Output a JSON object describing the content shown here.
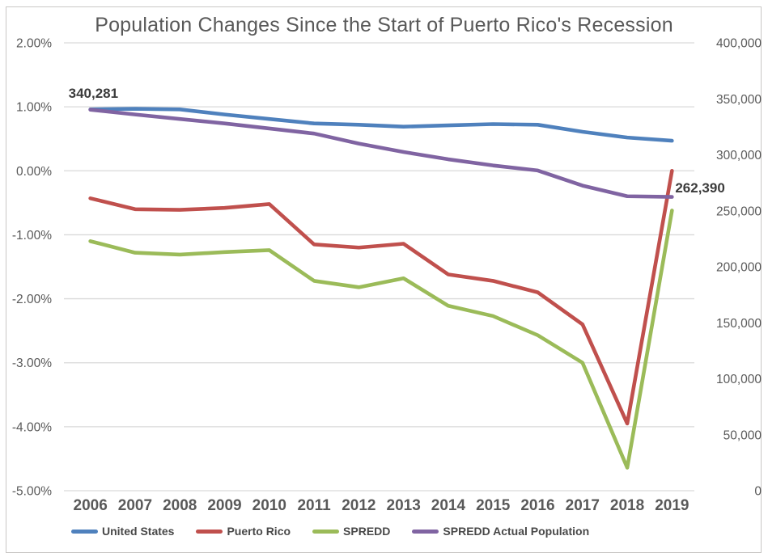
{
  "chart_data": {
    "type": "line",
    "title": "Population Changes Since the Start of Puerto Rico's Recession",
    "categories": [
      "2006",
      "2007",
      "2008",
      "2009",
      "2010",
      "2011",
      "2012",
      "2013",
      "2014",
      "2015",
      "2016",
      "2017",
      "2018",
      "2019"
    ],
    "grid": true,
    "legend_position": "bottom",
    "left_axis": {
      "label_format": "percent",
      "min": -5,
      "max": 2,
      "ticks": [
        "2.00%",
        "1.00%",
        "0.00%",
        "-1.00%",
        "-2.00%",
        "-3.00%",
        "-4.00%",
        "-5.00%"
      ],
      "tick_values": [
        2,
        1,
        0,
        -1,
        -2,
        -3,
        -4,
        -5
      ]
    },
    "right_axis": {
      "label_format": "number",
      "min": 0,
      "max": 400000,
      "ticks": [
        "400,000",
        "350,000",
        "300,000",
        "250,000",
        "200,000",
        "150,000",
        "100,000",
        "50,000",
        "0"
      ],
      "tick_values": [
        400000,
        350000,
        300000,
        250000,
        200000,
        150000,
        100000,
        50000,
        0
      ]
    },
    "series": [
      {
        "name": "United States",
        "axis": "left",
        "color": "#4F81BD",
        "values": [
          0.96,
          0.97,
          0.96,
          0.88,
          0.81,
          0.74,
          0.72,
          0.69,
          0.71,
          0.73,
          0.72,
          0.61,
          0.52,
          0.47
        ]
      },
      {
        "name": "Puerto Rico",
        "axis": "left",
        "color": "#C0504D",
        "values": [
          -0.43,
          -0.6,
          -0.61,
          -0.58,
          -0.52,
          -1.15,
          -1.2,
          -1.14,
          -1.62,
          -1.72,
          -1.9,
          -2.4,
          -3.95,
          0.0
        ]
      },
      {
        "name": "SPREDD",
        "axis": "left",
        "color": "#9BBB59",
        "values": [
          -1.1,
          -1.28,
          -1.31,
          -1.27,
          -1.24,
          -1.72,
          -1.82,
          -1.68,
          -2.11,
          -2.27,
          -2.57,
          -3.0,
          -4.64,
          -0.62
        ]
      },
      {
        "name": "SPREDD Actual Population",
        "axis": "right",
        "color": "#8064A2",
        "values": [
          340281,
          336000,
          332000,
          328000,
          323500,
          319000,
          310000,
          302500,
          296000,
          290500,
          286000,
          272500,
          263000,
          262390
        ]
      }
    ],
    "annotations": [
      {
        "text": "340,281",
        "series": "SPREDD Actual Population",
        "year": "2006",
        "position": "above-left"
      },
      {
        "text": "262,390",
        "series": "SPREDD Actual Population",
        "year": "2019",
        "position": "right"
      }
    ],
    "colors": {
      "gridline": "#D9D9D9",
      "axis_text": "#595959",
      "year_text": "#595959",
      "title_text": "#595959",
      "annotation_text": "#3B3B3B",
      "frame_border": "#C9C7C5"
    }
  }
}
